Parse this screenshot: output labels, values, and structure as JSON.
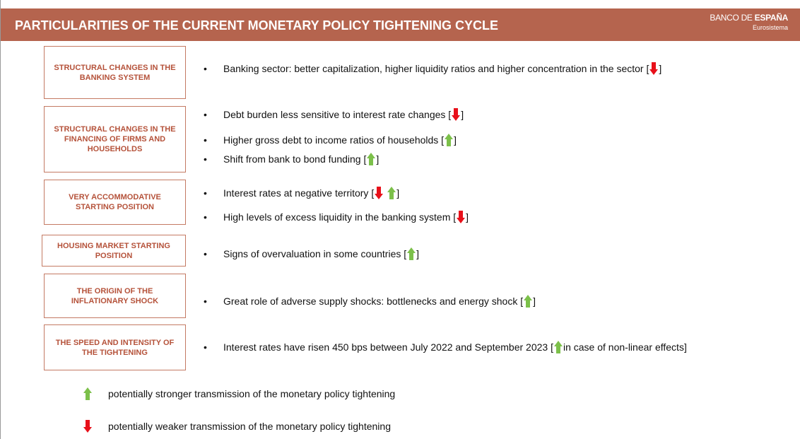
{
  "header": {
    "title": "PARTICULARITIES OF THE CURRENT MONETARY POLICY TIGHTENING CYCLE",
    "logo_line1a": "BANCO DE ",
    "logo_line1b": "ESPAÑA",
    "logo_line2": "Eurosistema"
  },
  "rows": [
    {
      "label": "STRUCTURAL CHANGES IN THE BANKING SYSTEM",
      "bullets": [
        {
          "text": "Banking sector: better capitalization, higher liquidity ratios and higher concentration in the sector [",
          "after": "]"
        }
      ]
    },
    {
      "label": "STRUCTURAL CHANGES IN THE FINANCING OF FIRMS AND HOUSEHOLDS",
      "bullets": [
        {
          "text": "Debt burden less sensitive to interest rate changes [",
          "after": "]"
        },
        {
          "text": "Higher gross debt to income ratios of households [",
          "after": "]"
        },
        {
          "text": "Shift from bank to bond funding [",
          "after": "]"
        }
      ]
    },
    {
      "label": "VERY ACCOMMODATIVE STARTING POSITION",
      "bullets": [
        {
          "text": "Interest rates at negative territory [",
          "after": "]"
        },
        {
          "text": "High levels of excess liquidity in the banking system [",
          "after": "]"
        }
      ]
    },
    {
      "label": "HOUSING MARKET STARTING POSITION",
      "bullets": [
        {
          "text": "Signs of overvaluation in some countries [",
          "after": "]"
        }
      ]
    },
    {
      "label": "THE ORIGIN OF THE INFLATIONARY SHOCK",
      "bullets": [
        {
          "text": "Great role of adverse supply shocks: bottlenecks and energy shock [",
          "after": "]"
        }
      ]
    },
    {
      "label": "THE SPEED AND INTENSITY OF THE TIGHTENING",
      "bullets": [
        {
          "text": "Interest rates have risen 450 bps between July 2022 and September 2023 [",
          "after": " in case of non-linear effects]"
        }
      ]
    }
  ],
  "legend": {
    "up": "potentially stronger transmission of the monetary policy tightening",
    "down": "potentially weaker transmission of the monetary policy tightening"
  }
}
